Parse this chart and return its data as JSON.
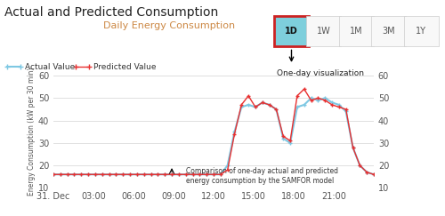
{
  "title": "Actual and Predicted Consumption",
  "subtitle": "Daily Energy Consumption",
  "ylabel": "Energy Consumption (kW per 30 min)",
  "ylim": [
    10,
    60
  ],
  "yticks": [
    10,
    20,
    30,
    40,
    50,
    60
  ],
  "x_labels": [
    "31. Dec",
    "03:00",
    "06:00",
    "09:00",
    "12:00",
    "15:00",
    "18:00",
    "21:00",
    ""
  ],
  "annotation_text": "Comparison of one-day actual and predicted\nenergy consumption by the SAMFOR model",
  "one_day_label": "One-day visualization",
  "button_labels": [
    "1D",
    "1W",
    "1M",
    "3M",
    "1Y"
  ],
  "actual_color": "#7ec8e3",
  "predicted_color": "#e83030",
  "actual_x": [
    0,
    1,
    2,
    3,
    4,
    5,
    6,
    7,
    8,
    9,
    10,
    11,
    12,
    13,
    14,
    15,
    16,
    17,
    18,
    19,
    20,
    21,
    22,
    23,
    24,
    25,
    26,
    27,
    28,
    29,
    30,
    31,
    32,
    33,
    34,
    35,
    36,
    37,
    38,
    39,
    40,
    41,
    42,
    43,
    44,
    45,
    46
  ],
  "actual_y": [
    16,
    16,
    16,
    16,
    16,
    16,
    16,
    16,
    16,
    16,
    16,
    16,
    16,
    16,
    16,
    16,
    16,
    16,
    16,
    16,
    16,
    16,
    16,
    16,
    16,
    20,
    35,
    46,
    47,
    46,
    48,
    47,
    45,
    32,
    30,
    46,
    47,
    50,
    49,
    50,
    48,
    47,
    44,
    28,
    20,
    17,
    16
  ],
  "predicted_y": [
    16,
    16,
    16,
    16,
    16,
    16,
    16,
    16,
    16,
    16,
    16,
    16,
    16,
    16,
    16,
    16,
    16,
    16,
    16,
    16,
    16,
    16,
    16,
    16,
    16,
    18,
    34,
    47,
    51,
    46,
    48,
    47,
    45,
    33,
    31,
    51,
    54,
    49,
    50,
    49,
    47,
    46,
    45,
    28,
    20,
    17,
    16
  ],
  "background": "#ffffff",
  "grid_color": "#e0e0e0",
  "title_fontsize": 10,
  "subtitle_fontsize": 8,
  "axis_fontsize": 7,
  "tick_fontsize": 7
}
